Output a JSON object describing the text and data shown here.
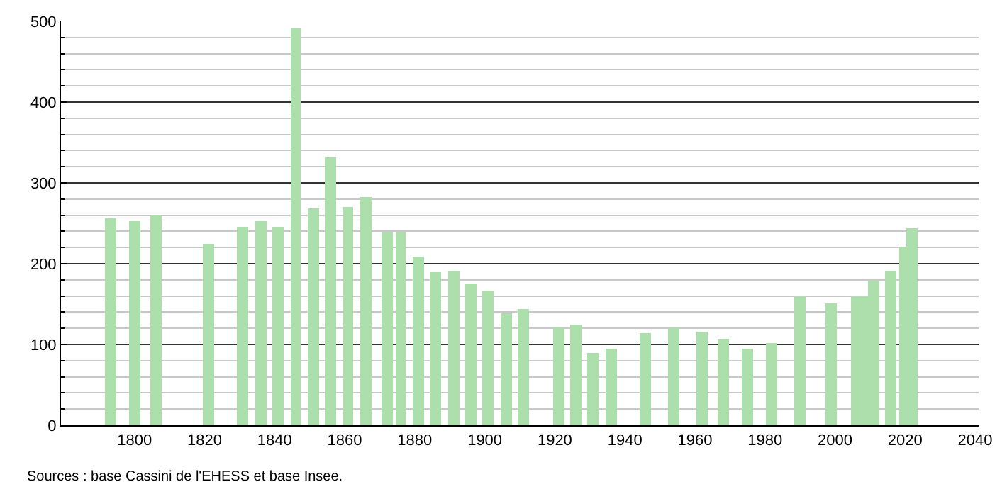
{
  "chart_data": {
    "type": "bar",
    "x": [
      1793,
      1800,
      1806,
      1821,
      1831,
      1836,
      1841,
      1846,
      1851,
      1856,
      1861,
      1866,
      1872,
      1876,
      1881,
      1886,
      1891,
      1896,
      1901,
      1906,
      1911,
      1921,
      1926,
      1931,
      1936,
      1946,
      1954,
      1962,
      1968,
      1975,
      1982,
      1990,
      1999,
      2006,
      2008,
      2011,
      2016,
      2020,
      2022
    ],
    "values": [
      257,
      253,
      260,
      225,
      245,
      253,
      245,
      491,
      269,
      332,
      270,
      283,
      239,
      239,
      209,
      190,
      191,
      176,
      166,
      139,
      143,
      121,
      124,
      90,
      95,
      114,
      121,
      116,
      107,
      95,
      102,
      159,
      151,
      159,
      159,
      179,
      191,
      221,
      243
    ],
    "color": "#addfad",
    "xlim": [
      1779,
      2041
    ],
    "xticks": [
      1800,
      1820,
      1840,
      1860,
      1880,
      1900,
      1920,
      1940,
      1960,
      1980,
      2000,
      2020,
      2040
    ],
    "ylim": [
      0,
      500
    ],
    "yticks": [
      0,
      {
        "value": 20,
        "label": null
      },
      {
        "value": 40,
        "label": null
      },
      {
        "value": 60,
        "label": null
      },
      {
        "value": 80,
        "label": null
      },
      100,
      {
        "value": 120,
        "label": null
      },
      {
        "value": 140,
        "label": null
      },
      {
        "value": 160,
        "label": null
      },
      {
        "value": 180,
        "label": null
      },
      200,
      {
        "value": 220,
        "label": null
      },
      {
        "value": 240,
        "label": null
      },
      {
        "value": 260,
        "label": null
      },
      {
        "value": 280,
        "label": null
      },
      300,
      {
        "value": 320,
        "label": null
      },
      {
        "value": 340,
        "label": null
      },
      {
        "value": 360,
        "label": null
      },
      {
        "value": 380,
        "label": null
      },
      400,
      {
        "value": 420,
        "label": null
      },
      {
        "value": 440,
        "label": null
      },
      {
        "value": 460,
        "label": null
      },
      {
        "value": 480,
        "label": null
      },
      500
    ],
    "grid": "y",
    "annotations": [
      "Sources : base Cassini de l'EHESS et base Insee."
    ]
  }
}
